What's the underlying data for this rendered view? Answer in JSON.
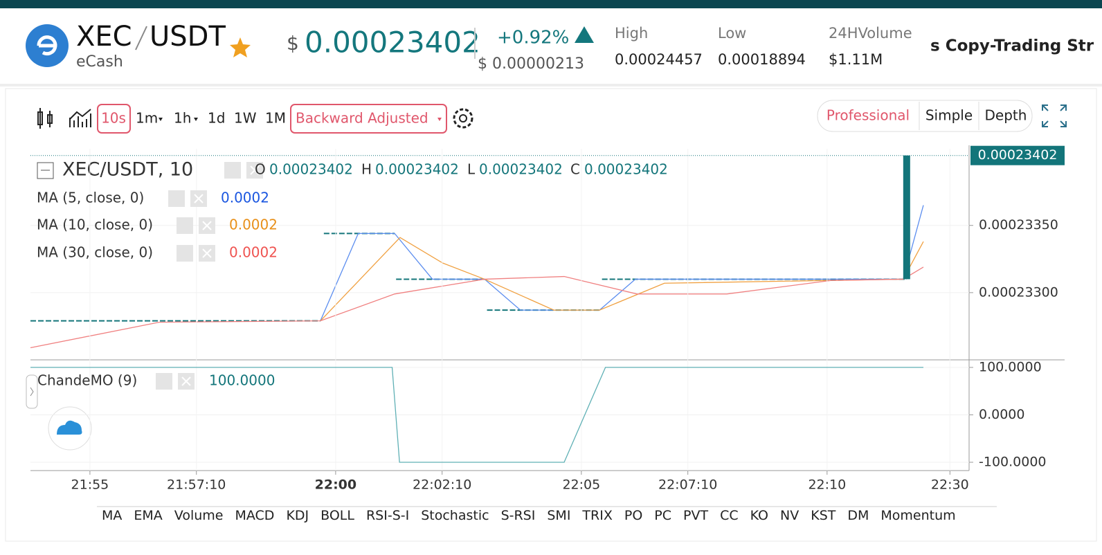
{
  "header": {
    "base": "XEC",
    "quote": "USDT",
    "name": "eCash",
    "currency": "$",
    "price": "0.00023402",
    "change": "+0.92%",
    "change_amount": "$ 0.00000213",
    "high_label": "High",
    "high": "0.00024457",
    "low_label": "Low",
    "low": "0.00018894",
    "volume_label": "24HVolume",
    "volume": "$1.11M",
    "ticker": "s Copy-Trading Str"
  },
  "toolbar": {
    "intervals": [
      "10s",
      "1m",
      "1h",
      "1d",
      "1W",
      "1M"
    ],
    "adjust": "Backward Adjusted",
    "views": [
      "Professional",
      "Simple",
      "Depth"
    ]
  },
  "chart_data": [
    {
      "type": "line",
      "title": "XEC/USDT, 10",
      "ohlc": [
        [
          "O",
          "0.00023402"
        ],
        [
          "H",
          "0.00023402"
        ],
        [
          "L",
          "0.00023402"
        ],
        [
          "C",
          "0.00023402"
        ]
      ],
      "xlim": [
        1313.79,
        1332.89
      ],
      "ylim": [
        0.0002325,
        0.00023407
      ],
      "yticks": [
        {
          "value": 0.0002335,
          "label": "0.00023350"
        },
        {
          "value": 0.000233,
          "label": "0.00023300"
        }
      ],
      "grid": true,
      "last_price": 0.00023402,
      "price": {
        "color": "#13757a",
        "x": [
          1313.79,
          1319.69,
          null,
          1319.76,
          1321.2,
          null,
          1321.23,
          1323.03,
          null,
          1323.08,
          1325.37,
          null,
          1325.42,
          1331.62
        ],
        "values": [
          0.00023279,
          0.00023279,
          null,
          0.00023344,
          0.00023344,
          null,
          0.0002331,
          0.0002331,
          null,
          0.00023287,
          0.00023287,
          null,
          0.0002331,
          0.0002331
        ]
      },
      "candle": {
        "x": 1331.62,
        "open": 0.0002331,
        "close": 0.00023402,
        "color": "#13757a"
      },
      "series": [
        {
          "name": "MA (5, close, 0)",
          "color": "#5b8def",
          "label_color": "#1a56e0",
          "last_label": "0.0002",
          "x": [
            1319.69,
            1320.46,
            1321.2,
            1321.97,
            1323.03,
            1323.76,
            1325.37,
            1326.1,
            1331.55,
            1331.96
          ],
          "values": [
            0.00023279,
            0.00023344,
            0.00023344,
            0.0002331,
            0.0002331,
            0.00023287,
            0.00023287,
            0.0002331,
            0.0002331,
            0.00023365
          ]
        },
        {
          "name": "MA (10, close, 0)",
          "color": "#f0a040",
          "label_color": "#e8901a",
          "last_label": "0.0002",
          "x": [
            1319.69,
            1321.31,
            1322.18,
            1323.03,
            1324.44,
            1325.37,
            1326.69,
            1331.55,
            1331.96
          ],
          "values": [
            0.00023279,
            0.00023341,
            0.00023322,
            0.0002331,
            0.00023287,
            0.00023287,
            0.00023307,
            0.0002331,
            0.00023338
          ]
        },
        {
          "name": "MA (30, close, 0)",
          "color": "#f08080",
          "label_color": "#ef5350",
          "last_label": "0.0002",
          "x": [
            1313.79,
            1316.41,
            1319.69,
            1321.2,
            1323.03,
            1324.65,
            1326.13,
            1327.96,
            1330.07,
            1331.55,
            1331.96
          ],
          "values": [
            0.00023259,
            0.00023278,
            0.00023279,
            0.00023299,
            0.0002331,
            0.00023312,
            0.00023299,
            0.00023299,
            0.00023309,
            0.0002331,
            0.00023319
          ]
        }
      ]
    },
    {
      "type": "line",
      "title": "ChandeMO (9)",
      "last_label": "100.0000",
      "xlim": [
        1313.79,
        1332.89
      ],
      "xticks": [
        {
          "value": 1315,
          "label": "21:55"
        },
        {
          "value": 1317.1667,
          "label": "21:57:10"
        },
        {
          "value": 1320,
          "label": "22:00"
        },
        {
          "value": 1322.1667,
          "label": "22:02:10"
        },
        {
          "value": 1325,
          "label": "22:05"
        },
        {
          "value": 1327.1667,
          "label": "22:07:10"
        },
        {
          "value": 1330,
          "label": "22:10"
        },
        {
          "value": 1332.5,
          "label": "22:30"
        }
      ],
      "ylim": [
        -117.5,
        113
      ],
      "yticks": [
        {
          "value": 100,
          "label": "100.0000"
        },
        {
          "value": 0,
          "label": "0.0000"
        },
        {
          "value": -100,
          "label": "-100.0000"
        }
      ],
      "grid": true,
      "series": [
        {
          "color": "#5fb0b5",
          "x": [
            1313.79,
            1321.15,
            1321.3,
            1324.65,
            1325.49,
            1331.96
          ],
          "values": [
            100,
            100,
            -100,
            -100,
            100,
            100
          ]
        }
      ]
    }
  ],
  "indicator_tabs": [
    "MA",
    "EMA",
    "Volume",
    "MACD",
    "KDJ",
    "BOLL",
    "RSI-S-I",
    "Stochastic",
    "S-RSI",
    "SMI",
    "TRIX",
    "PO",
    "PC",
    "PVT",
    "CC",
    "KO",
    "NV",
    "KST",
    "DM",
    "Momentum"
  ]
}
